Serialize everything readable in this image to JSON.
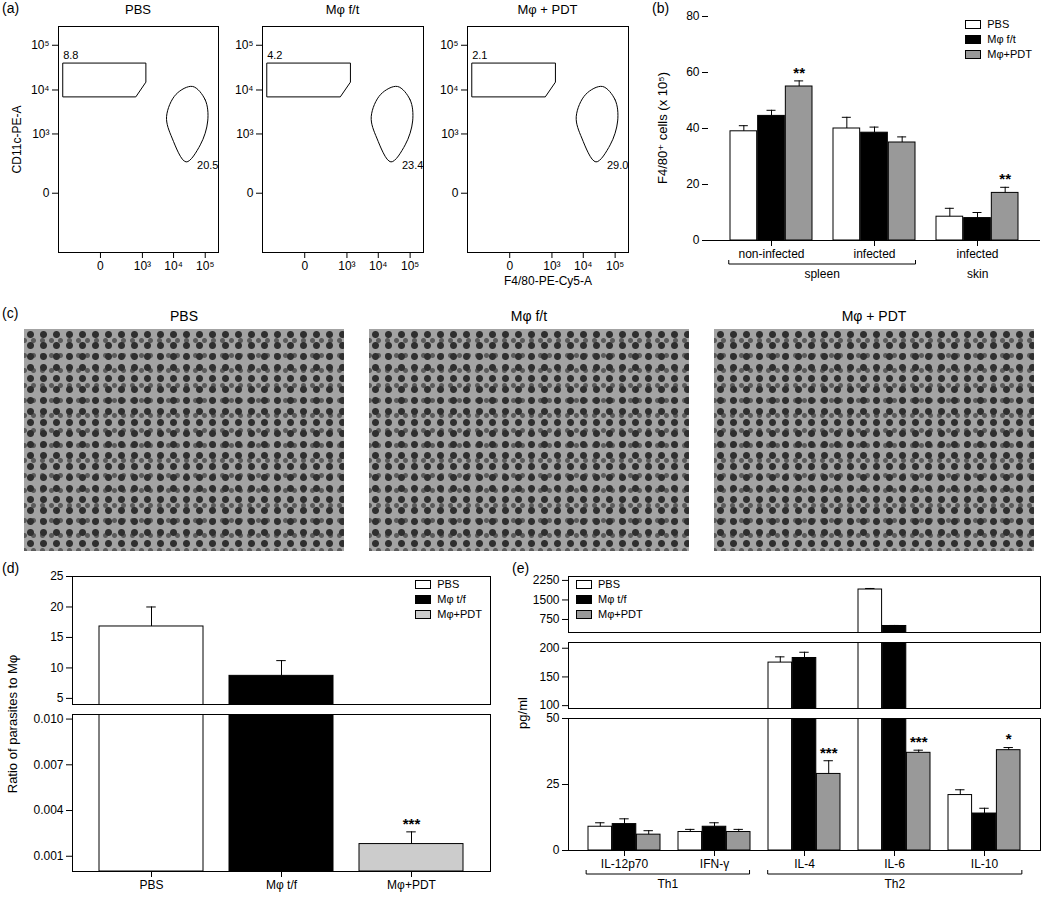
{
  "chart_data": [
    {
      "title": "(a)",
      "type": "scatter",
      "log": true,
      "x_label": "F4/80-PE-Cy5-A",
      "y_label": "CD11c-PE-A",
      "xlim": [
        -1000,
        262144
      ],
      "ylim": [
        -1000,
        262144
      ],
      "xticks": [
        0,
        {
          "value": 1000,
          "label": "10³"
        },
        {
          "value": 10000,
          "label": "10⁴"
        },
        {
          "value": 100000,
          "label": "10⁵"
        }
      ],
      "yticks": [
        0,
        {
          "value": 1000,
          "label": "10³"
        },
        {
          "value": 10000,
          "label": "10⁴"
        },
        {
          "value": 100000,
          "label": "10⁵"
        }
      ],
      "subplots": [
        {
          "title": "PBS",
          "gates": [
            {
              "value": 8.8,
              "type": "polygon",
              "points": [
                [
                  -700,
                  40000
                ],
                [
                  1300,
                  40000
                ],
                [
                  1300,
                  15000
                ],
                [
                  600,
                  7000
                ],
                [
                  -700,
                  7000
                ]
              ]
            },
            {
              "value": 20.5,
              "type": "ellipse",
              "points": [
                [
                  40000,
                  12000
                ],
                [
                  100000,
                  6000
                ],
                [
                  120000,
                  2000
                ],
                [
                  70000,
                  550
                ],
                [
                  25000,
                  200
                ],
                [
                  9000,
                  800
                ],
                [
                  6000,
                  2500
                ],
                [
                  12000,
                  8000
                ]
              ]
            }
          ]
        },
        {
          "title": "Mφ f/t",
          "gates": [
            {
              "value": 4.2,
              "type": "polygon",
              "points": [
                [
                  -700,
                  40000
                ],
                [
                  1300,
                  40000
                ],
                [
                  1300,
                  15000
                ],
                [
                  600,
                  7000
                ],
                [
                  -700,
                  7000
                ]
              ]
            },
            {
              "value": 23.4,
              "type": "ellipse",
              "points": [
                [
                  40000,
                  12000
                ],
                [
                  100000,
                  6000
                ],
                [
                  120000,
                  2000
                ],
                [
                  70000,
                  550
                ],
                [
                  25000,
                  200
                ],
                [
                  9000,
                  800
                ],
                [
                  6000,
                  2500
                ],
                [
                  12000,
                  8000
                ]
              ]
            }
          ]
        },
        {
          "title": "Mφ + PDT",
          "gates": [
            {
              "value": 2.1,
              "type": "polygon",
              "points": [
                [
                  -700,
                  40000
                ],
                [
                  1300,
                  40000
                ],
                [
                  1300,
                  15000
                ],
                [
                  600,
                  7000
                ],
                [
                  -700,
                  7000
                ]
              ]
            },
            {
              "value": 29,
              "value_label": "29.0",
              "type": "ellipse",
              "points": [
                [
                  40000,
                  12000
                ],
                [
                  100000,
                  6000
                ],
                [
                  120000,
                  2000
                ],
                [
                  70000,
                  550
                ],
                [
                  25000,
                  200
                ],
                [
                  9000,
                  800
                ],
                [
                  6000,
                  2500
                ],
                [
                  12000,
                  8000
                ]
              ]
            }
          ]
        }
      ]
    },
    {
      "title": "(b)",
      "type": "bar",
      "y_label": "F4/80⁺ cells (x 10⁵)",
      "categories": [
        "non-infected",
        "infected",
        "infected"
      ],
      "groups": [
        "spleen",
        "spleen",
        "skin"
      ],
      "ylim": [
        0,
        80
      ],
      "yticks": [
        0,
        20,
        40,
        60,
        80
      ],
      "legend": "top-right",
      "series": [
        {
          "name": "PBS",
          "color": "#ffffff",
          "values": [
            39,
            40,
            8.5
          ],
          "errors": [
            2,
            4,
            3
          ]
        },
        {
          "name": "Mφ f/t",
          "color": "#000000",
          "values": [
            44.5,
            38.5,
            8
          ],
          "errors": [
            2,
            2,
            2
          ]
        },
        {
          "name": "Mφ+PDT",
          "color": "#999999",
          "values": [
            55,
            35,
            17
          ],
          "errors": [
            2,
            2,
            2
          ],
          "significance": [
            "**",
            null,
            "**"
          ]
        }
      ]
    },
    {
      "title": "(c)",
      "type": "image",
      "titles": [
        "PBS",
        "Mφ f/t",
        "Mφ + PDT"
      ]
    },
    {
      "title": "(d)",
      "type": "bar",
      "y_label": "Ratio of parasites to Mφ",
      "categories": [
        "PBS",
        "Mφ t/f",
        "Mφ+PDT"
      ],
      "legend": "top-right",
      "y_segments": [
        {
          "ylim": [
            0,
            0.0103
          ],
          "yticks": [
            0.001,
            0.004,
            0.007,
            {
              "value": 0.01,
              "label": "0.010"
            }
          ]
        },
        {
          "ylim": [
            4,
            25
          ],
          "yticks": [
            5,
            10,
            15,
            20,
            25
          ]
        }
      ],
      "series": [
        {
          "colors": [
            "#ffffff",
            "#000000",
            "#cccccc"
          ],
          "values": [
            16.8,
            8.7,
            0.0018
          ],
          "errors": [
            3.2,
            2.5,
            0.0008
          ],
          "significance": [
            null,
            null,
            "***"
          ]
        }
      ]
    },
    {
      "title": "(e)",
      "type": "bar",
      "y_label": "pg/ml",
      "categories": [
        "IL-12p70",
        "IFN-γ",
        "IL-4",
        "IL-6",
        "IL-10"
      ],
      "groups": [
        "Th1",
        "Th1",
        "Th2",
        "Th2",
        "Th2"
      ],
      "legend": "top-left",
      "y_segments": [
        {
          "ylim": [
            0,
            50
          ],
          "yticks": [
            0,
            25,
            50
          ]
        },
        {
          "ylim": [
            95,
            210
          ],
          "yticks": [
            100,
            150,
            200
          ]
        },
        {
          "ylim": [
            250,
            2400
          ],
          "yticks": [
            750,
            1500,
            2250
          ]
        }
      ],
      "series": [
        {
          "name": "PBS",
          "color": "#ffffff",
          "values": [
            9,
            7,
            175,
            1900,
            21
          ],
          "errors": [
            1.5,
            1,
            10,
            40,
            2
          ]
        },
        {
          "name": "Mφ t/f",
          "color": "#000000",
          "values": [
            10,
            9,
            183,
            500,
            14
          ],
          "errors": [
            2,
            1.5,
            10,
            20,
            2
          ]
        },
        {
          "name": "Mφ+PDT",
          "color": "#999999",
          "values": [
            6,
            7,
            29,
            37,
            38
          ],
          "errors": [
            1.5,
            1,
            5,
            1,
            1
          ],
          "significance": [
            null,
            null,
            "***",
            "***",
            "*"
          ]
        }
      ]
    }
  ]
}
